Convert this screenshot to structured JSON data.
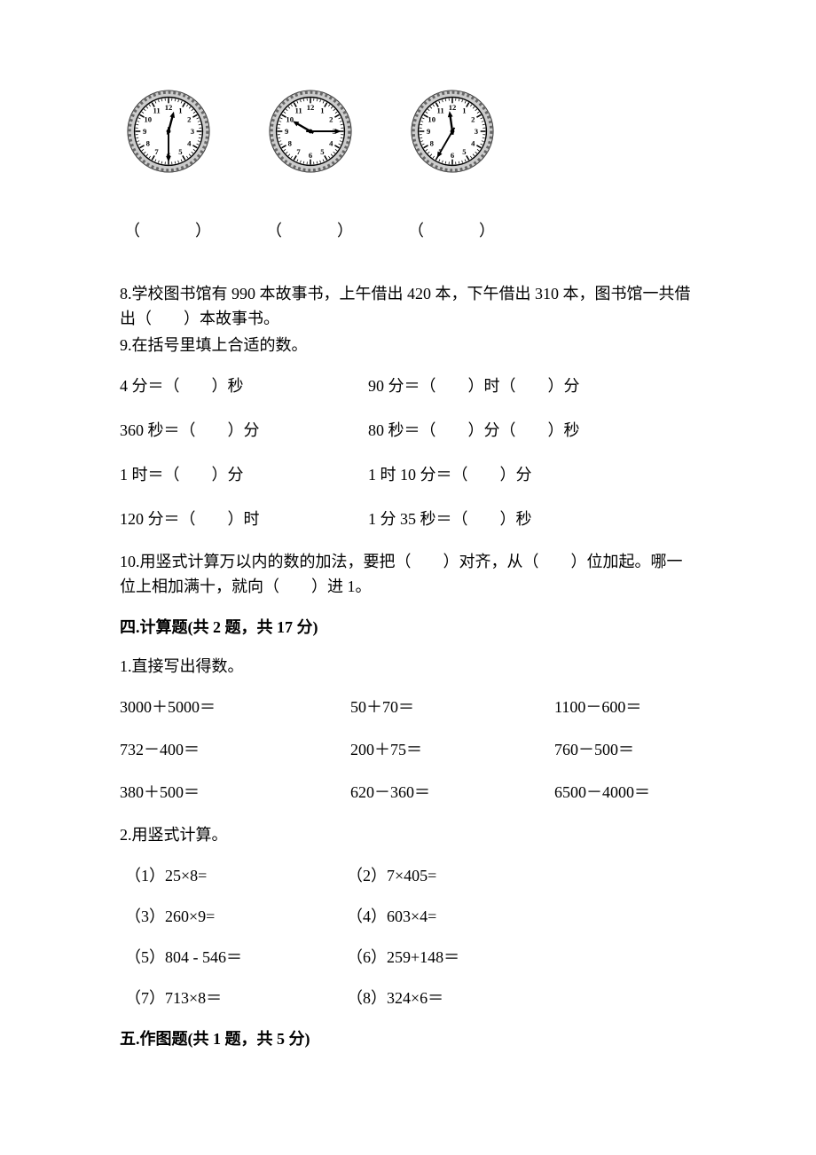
{
  "clocks": {
    "background": "#ffffff",
    "rim_fill": "#cccccc",
    "rim_stroke": "#333333",
    "number_font_size": 9,
    "items": [
      {
        "hour_angle": 15,
        "minute_angle": 180,
        "caption": "（　　　）"
      },
      {
        "hour_angle": 300,
        "minute_angle": 90,
        "caption": "（　　　）"
      },
      {
        "hour_angle": 352,
        "minute_angle": 210,
        "caption": "（　　　）"
      }
    ]
  },
  "q8": "8.学校图书馆有 990 本故事书，上午借出 420 本，下午借出 310 本，图书馆一共借出（　　）本故事书。",
  "q9_title": "9.在括号里填上合适的数。",
  "q9_rows": [
    {
      "l": "4 分＝（　　）秒",
      "r": "90 分＝（　　）时（　　）分"
    },
    {
      "l": "360 秒＝（　　）分",
      "r": "80 秒＝（　　）分（　　）秒"
    },
    {
      "l": "1 时＝（　　）分",
      "r": "1 时 10 分＝（　　）分"
    },
    {
      "l": "120 分＝（　　）时",
      "r": "1 分 35 秒＝（　　）秒"
    }
  ],
  "q10": "10.用竖式计算万以内的数的加法，要把（　　）对齐，从（　　）位加起。哪一位上相加满十，就向（　　）进 1。",
  "sec4_header": "四.计算题(共 2 题，共 17 分)",
  "calc1_title": "1.直接写出得数。",
  "calc1_rows": [
    {
      "a": "3000＋5000＝",
      "b": "50＋70＝",
      "c": "1100－600＝"
    },
    {
      "a": "732－400＝",
      "b": "200＋75＝",
      "c": "760－500＝"
    },
    {
      "a": "380＋500＝",
      "b": "620－360＝",
      "c": "6500－4000＝"
    }
  ],
  "calc2_title": "2.用竖式计算。",
  "calc2_rows": [
    {
      "l": "（1）25×8=",
      "r": "（2）7×405="
    },
    {
      "l": "（3）260×9=",
      "r": "（4）603×4="
    },
    {
      "l": "（5）804 - 546＝",
      "r": "（6）259+148＝"
    },
    {
      "l": "（7）713×8＝",
      "r": "（8）324×6＝"
    }
  ],
  "sec5_header": "五.作图题(共 1 题，共 5 分)"
}
